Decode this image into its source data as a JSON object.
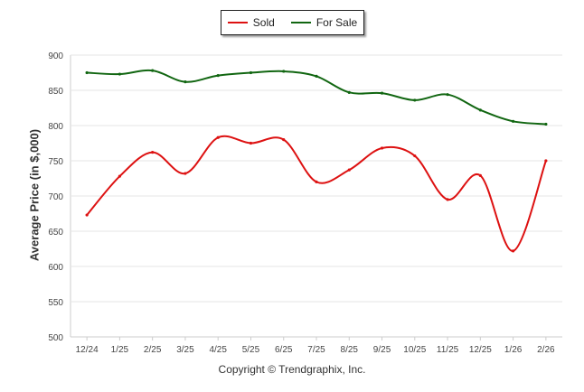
{
  "chart_data": {
    "type": "line",
    "title": "",
    "xlabel": "",
    "ylabel": "Average Price (in $,000)",
    "ylim": [
      500,
      900
    ],
    "yticks": [
      500,
      550,
      600,
      650,
      700,
      750,
      800,
      850,
      900
    ],
    "categories": [
      "12/24",
      "1/25",
      "2/25",
      "3/25",
      "4/25",
      "5/25",
      "6/25",
      "7/25",
      "8/25",
      "9/25",
      "10/25",
      "11/25",
      "12/25",
      "1/26",
      "2/26"
    ],
    "series": [
      {
        "name": "Sold",
        "color": "#dd1111",
        "values": [
          673,
          728,
          762,
          732,
          783,
          775,
          780,
          720,
          737,
          768,
          757,
          695,
          729,
          622,
          750
        ]
      },
      {
        "name": "For Sale",
        "color": "#116611",
        "values": [
          875,
          873,
          878,
          862,
          871,
          875,
          877,
          870,
          847,
          846,
          836,
          844,
          822,
          806,
          802
        ]
      }
    ],
    "legend": "top-center",
    "grid": true
  },
  "footer": {
    "copyright": "Copyright © Trendgraphix, Inc."
  }
}
